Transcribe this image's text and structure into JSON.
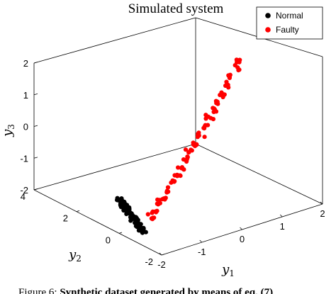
{
  "chart_data": {
    "type": "scatter",
    "title": "Simulated system",
    "xlabel": "y1",
    "ylabel": "y2",
    "zlabel": "y3",
    "xlim": [
      -2,
      2
    ],
    "ylim": [
      -2,
      4
    ],
    "zlim": [
      -2,
      2
    ],
    "x_ticks": [
      "-2",
      "-1",
      "0",
      "1",
      "2"
    ],
    "y_ticks": [
      "-2",
      "0",
      "2",
      "4"
    ],
    "z_ticks": [
      "-2",
      "-1",
      "0",
      "1",
      "2"
    ],
    "legend_position": "top-right",
    "grid": false,
    "series": [
      {
        "name": "Normal",
        "color": "#000000",
        "cluster": "tight elongated cluster near y1 ≈ -1.5, y3 ≈ -1.8",
        "points": [
          [
            -1.62,
            -0.4,
            -1.95
          ],
          [
            -1.55,
            -0.1,
            -1.9
          ],
          [
            -1.5,
            0.2,
            -1.85
          ],
          [
            -1.45,
            0.5,
            -1.8
          ],
          [
            -1.4,
            0.8,
            -1.75
          ],
          [
            -1.35,
            1.1,
            -1.7
          ],
          [
            -1.3,
            1.3,
            -1.66
          ],
          [
            -1.58,
            -0.2,
            -1.88
          ],
          [
            -1.48,
            0.4,
            -1.78
          ],
          [
            -1.38,
            0.9,
            -1.72
          ],
          [
            -1.52,
            0.1,
            -1.82
          ],
          [
            -1.42,
            0.7,
            -1.74
          ],
          [
            -1.6,
            -0.3,
            -1.92
          ],
          [
            -1.46,
            0.3,
            -1.8
          ],
          [
            -1.36,
            1.0,
            -1.68
          ],
          [
            -1.56,
            0.0,
            -1.86
          ],
          [
            -1.44,
            0.6,
            -1.77
          ],
          [
            -1.32,
            1.2,
            -1.67
          ],
          [
            -1.5,
            0.35,
            -1.83
          ],
          [
            -1.4,
            0.95,
            -1.73
          ]
        ]
      },
      {
        "name": "Faulty",
        "color": "#ff0000",
        "cluster": "elongated band from y1 ≈ -1.2 to 1.8 rising in y3 from -1.8 to 1.4",
        "points": [
          [
            -1.2,
            0.0,
            -1.8
          ],
          [
            -1.05,
            0.1,
            -1.7
          ],
          [
            -0.9,
            0.2,
            -1.55
          ],
          [
            -0.75,
            0.25,
            -1.45
          ],
          [
            -0.6,
            0.35,
            -1.3
          ],
          [
            -0.45,
            0.4,
            -1.15
          ],
          [
            -0.3,
            0.5,
            -1.0
          ],
          [
            -0.15,
            0.55,
            -0.85
          ],
          [
            0.0,
            0.6,
            -0.7
          ],
          [
            0.15,
            0.7,
            -0.5
          ],
          [
            0.3,
            0.75,
            -0.35
          ],
          [
            0.45,
            0.85,
            -0.15
          ],
          [
            0.6,
            0.9,
            0.0
          ],
          [
            0.75,
            1.0,
            0.2
          ],
          [
            0.9,
            1.05,
            0.35
          ],
          [
            1.05,
            1.15,
            0.55
          ],
          [
            1.2,
            1.2,
            0.7
          ],
          [
            1.35,
            1.3,
            0.9
          ],
          [
            1.5,
            1.35,
            1.05
          ],
          [
            1.65,
            1.45,
            1.25
          ],
          [
            1.8,
            1.5,
            1.4
          ]
        ]
      }
    ]
  },
  "caption": {
    "prefix": "Figure 6: ",
    "bold_text": "Synthetic dataset generated by means of eq. (7)"
  }
}
